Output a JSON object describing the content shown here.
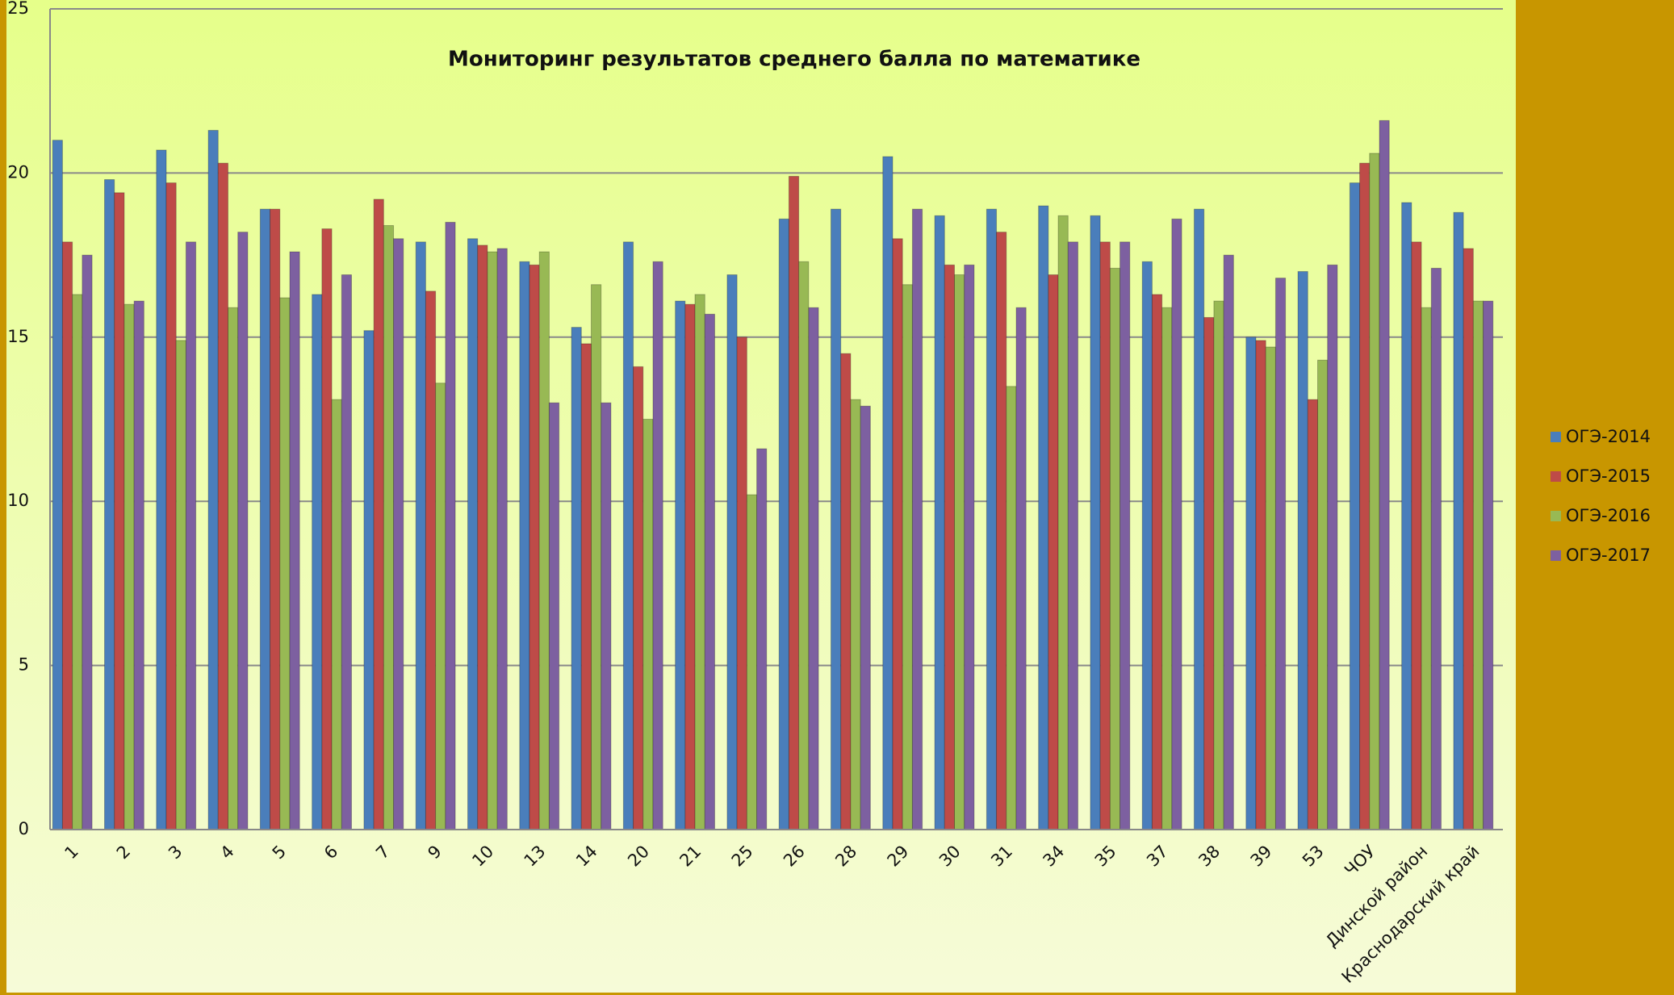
{
  "chart_data": {
    "type": "bar",
    "title": "Мониторинг результатов среднего балла по математике",
    "categories": [
      "1",
      "2",
      "3",
      "4",
      "5",
      "6",
      "7",
      "9",
      "10",
      "13",
      "14",
      "20",
      "21",
      "25",
      "26",
      "28",
      "29",
      "30",
      "31",
      "34",
      "35",
      "37",
      "38",
      "39",
      "53",
      "ЧОУ",
      "Динской район",
      "Краснодарский край"
    ],
    "series": [
      {
        "name": "ОГЭ-2014",
        "color": "#4a7ebb",
        "values": [
          21.0,
          19.8,
          20.7,
          21.3,
          18.9,
          16.3,
          15.2,
          17.9,
          18.0,
          17.3,
          15.3,
          17.9,
          16.1,
          16.9,
          18.6,
          18.9,
          20.5,
          18.7,
          18.9,
          19.0,
          18.7,
          17.3,
          18.9,
          15.0,
          17.0,
          19.7,
          19.1,
          18.8
        ]
      },
      {
        "name": "ОГЭ-2015",
        "color": "#be4b48",
        "values": [
          17.9,
          19.4,
          19.7,
          20.3,
          18.9,
          18.3,
          19.2,
          16.4,
          17.8,
          17.2,
          14.8,
          14.1,
          16.0,
          15.0,
          19.9,
          14.5,
          18.0,
          17.2,
          18.2,
          16.9,
          17.9,
          16.3,
          15.6,
          14.9,
          13.1,
          20.3,
          17.9,
          17.7
        ]
      },
      {
        "name": "ОГЭ-2016",
        "color": "#98b954",
        "values": [
          16.3,
          16.0,
          14.9,
          15.9,
          16.2,
          13.1,
          18.4,
          13.6,
          17.6,
          17.6,
          16.6,
          12.5,
          16.3,
          10.2,
          17.3,
          13.1,
          16.6,
          16.9,
          13.5,
          18.7,
          17.1,
          15.9,
          16.1,
          14.7,
          14.3,
          20.6,
          15.9,
          16.1
        ]
      },
      {
        "name": "ОГЭ-2017",
        "color": "#7d60a0",
        "values": [
          17.5,
          16.1,
          17.9,
          18.2,
          17.6,
          16.9,
          18.0,
          18.5,
          17.7,
          13.0,
          13.0,
          17.3,
          15.7,
          11.6,
          15.9,
          12.9,
          18.9,
          17.2,
          15.9,
          17.9,
          17.9,
          18.6,
          17.5,
          16.8,
          17.2,
          21.6,
          17.1,
          16.1
        ]
      }
    ],
    "ylim": [
      0,
      25
    ],
    "yticks": [
      0,
      5,
      10,
      15,
      20,
      25
    ],
    "grid": true,
    "legend": "right"
  }
}
